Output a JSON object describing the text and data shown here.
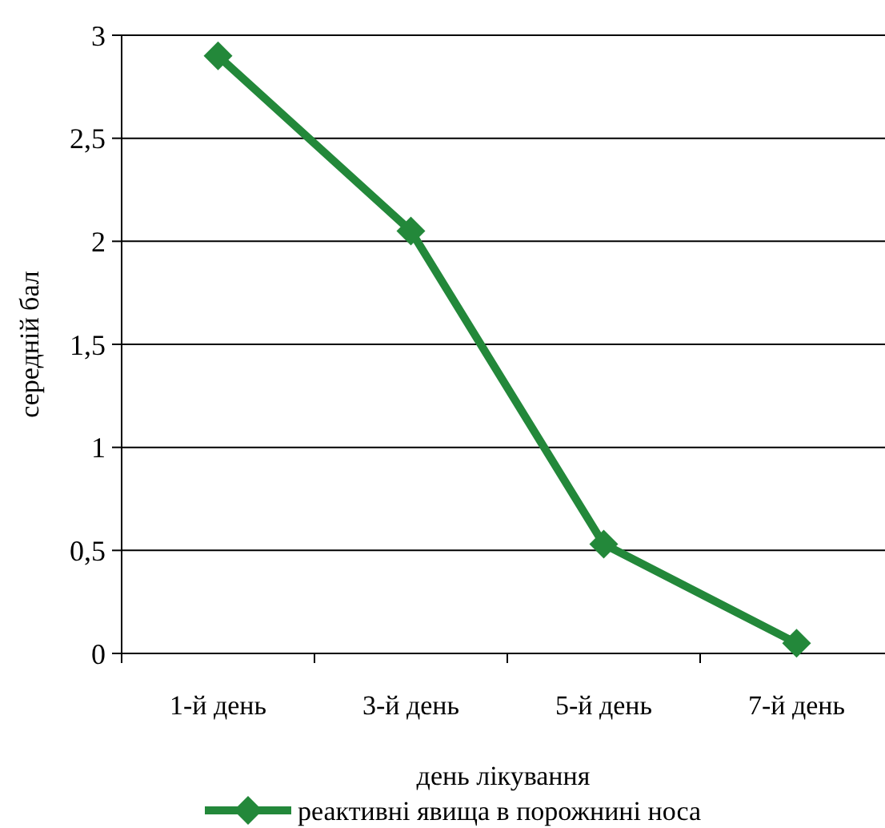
{
  "chart_data": {
    "type": "line",
    "xlabel": "день лікування",
    "ylabel": "середній бал",
    "categories": [
      "1-й день",
      "3-й день",
      "5-й день",
      "7-й день"
    ],
    "series": [
      {
        "name": "реактивні явища в порожнині носа",
        "color": "#23883a",
        "values": [
          2.9,
          2.05,
          0.53,
          0.05
        ]
      }
    ],
    "ylim": [
      0,
      3
    ],
    "yticks": [
      0,
      {
        "value": 0.5,
        "label": "0,5"
      },
      1,
      {
        "value": 1.5,
        "label": "1,5"
      },
      2,
      {
        "value": 2.5,
        "label": "2,5"
      },
      3
    ],
    "grid": "y",
    "marker": "diamond",
    "line_style": "solid",
    "legend": "bottom"
  }
}
